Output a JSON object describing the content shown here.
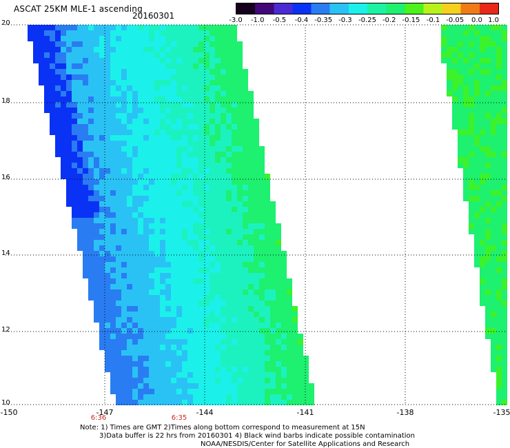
{
  "header": {
    "title": "ASCAT 25KM MLE-1 ascending",
    "date": "20160301"
  },
  "colorbar": {
    "labels": [
      "-3.0",
      "-1.0",
      "-0.5",
      "-0.4",
      "-0.35",
      "-0.3",
      "-0.25",
      "-0.2",
      "-0.15",
      "-0.1",
      "-0.05",
      "0.0",
      "1.0"
    ],
    "colors": [
      "#16001e",
      "#400878",
      "#4a2ad4",
      "#0a32f5",
      "#2a7cf2",
      "#2ac2f5",
      "#1cf0ea",
      "#1cf2a4",
      "#1ef070",
      "#4cf21a",
      "#b8f21c",
      "#f5d01e",
      "#f07a16",
      "#e82818"
    ]
  },
  "axes": {
    "lat_ticks": [
      "20",
      "18",
      "16",
      "14",
      "12",
      "10"
    ],
    "lon_ticks": [
      "-150",
      "-147",
      "-144",
      "-141",
      "-138",
      "-135"
    ],
    "times": [
      "6:36",
      "6:35"
    ]
  },
  "notes": [
    "Note: 1) Times are GMT 2)Times along bottom correspond to measurement at 15N",
    "3)Data buffer is 22 hrs from 20160301 4) Black wind barbs indicate possible contamination",
    "NOAA/NESDIS/Center for Satellite Applications and Research"
  ]
}
